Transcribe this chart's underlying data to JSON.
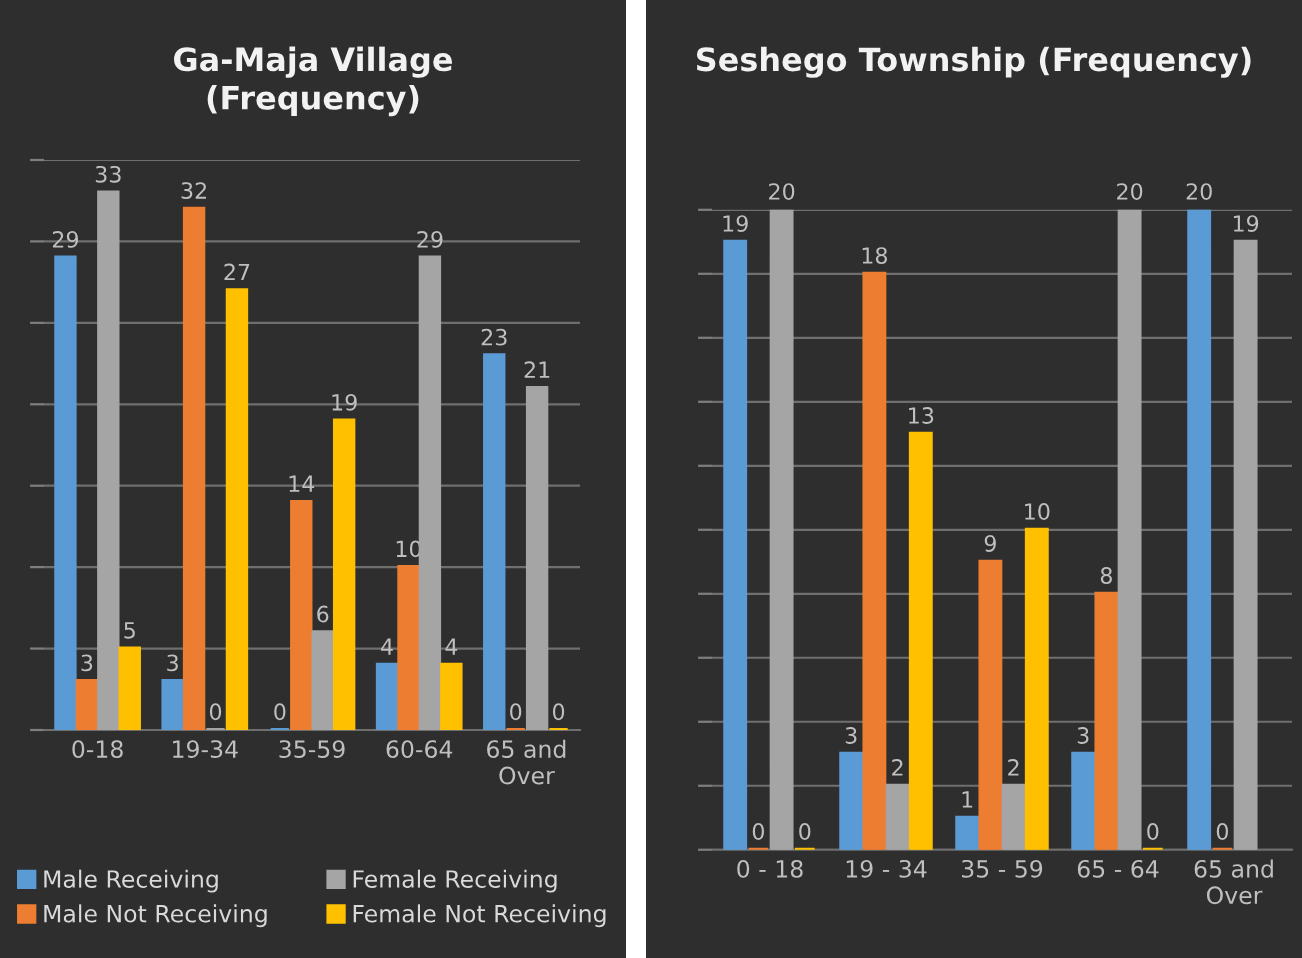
{
  "chart_data": [
    {
      "type": "bar",
      "title": "Ga-Maja Village\n(Frequency)",
      "categories": [
        "0-18",
        "19-34",
        "35-59",
        "60-64",
        "65 and\nOver"
      ],
      "series": [
        {
          "name": "Male Receiving",
          "color": "#5b9bd5",
          "values": [
            29,
            3,
            0,
            4,
            23
          ]
        },
        {
          "name": "Male Not Receiving",
          "color": "#ed7d31",
          "values": [
            3,
            32,
            14,
            10,
            0
          ]
        },
        {
          "name": "Female Receiving",
          "color": "#a5a5a5",
          "values": [
            33,
            0,
            6,
            29,
            21
          ]
        },
        {
          "name": "Female Not Receiving",
          "color": "#ffc000",
          "values": [
            5,
            27,
            19,
            4,
            0
          ]
        }
      ],
      "ylim": [
        0,
        35
      ],
      "yticks": [
        {
          "value": 0,
          "label": null
        },
        {
          "value": 5,
          "label": null
        },
        {
          "value": 10,
          "label": null
        },
        {
          "value": 15,
          "label": null
        },
        {
          "value": 20,
          "label": null
        },
        {
          "value": 25,
          "label": null
        },
        {
          "value": 30,
          "label": null
        },
        {
          "value": 35,
          "label": null
        }
      ],
      "grid": "y",
      "data_labels": true,
      "legend": "bottom",
      "tick_labels": "x"
    },
    {
      "type": "bar",
      "title": "Seshego Township (Frequency)",
      "categories": [
        "0 - 18",
        "19 - 34",
        "35 - 59",
        "65 - 64",
        "65 and\nOver"
      ],
      "series": [
        {
          "color": "#5b9bd5",
          "values": [
            19,
            3,
            1,
            3,
            20
          ]
        },
        {
          "color": "#ed7d31",
          "values": [
            0,
            18,
            9,
            8,
            0
          ]
        },
        {
          "color": "#a5a5a5",
          "values": [
            20,
            2,
            2,
            20,
            19
          ]
        },
        {
          "color": "#ffc000",
          "values": [
            0,
            13,
            10,
            0,
            null
          ]
        }
      ],
      "ylim": [
        0,
        20
      ],
      "yticks": [
        {
          "value": 0,
          "label": null
        },
        {
          "value": 2,
          "label": null
        },
        {
          "value": 4,
          "label": null
        },
        {
          "value": 6,
          "label": null
        },
        {
          "value": 8,
          "label": null
        },
        {
          "value": 10,
          "label": null
        },
        {
          "value": 12,
          "label": null
        },
        {
          "value": 14,
          "label": null
        },
        {
          "value": 16,
          "label": null
        },
        {
          "value": 18,
          "label": null
        },
        {
          "value": 20,
          "label": null
        }
      ],
      "grid": "y",
      "data_labels": true,
      "tick_labels": "x"
    }
  ]
}
